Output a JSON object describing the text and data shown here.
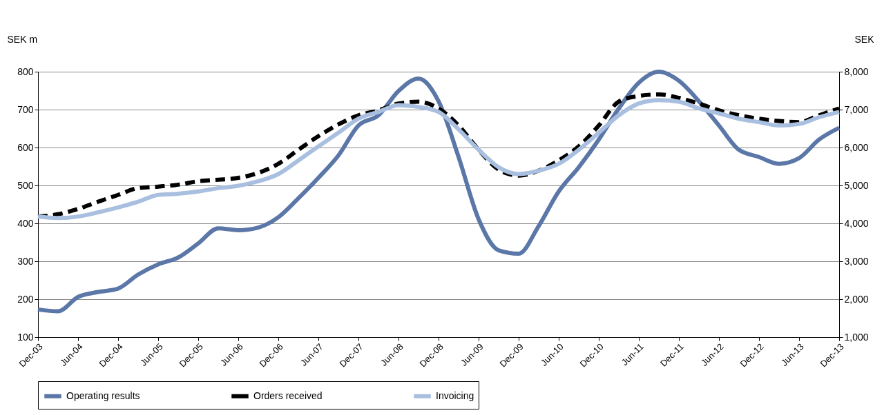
{
  "chart_data": {
    "type": "line",
    "ylabel": "SEK m",
    "y2label": "SEK",
    "categories": [
      "Dec-03",
      null,
      "Jun-04",
      null,
      "Dec-04",
      null,
      "Jun-05",
      null,
      "Dec-05",
      null,
      "Jun-06",
      null,
      "Dec-06",
      null,
      "Jun-07",
      null,
      "Dec-07",
      null,
      "Jun-08",
      null,
      "Dec-08",
      null,
      "Jun-09",
      null,
      "Dec-09",
      null,
      "Jun-10",
      null,
      "Dec-10",
      null,
      "Jun-11",
      null,
      "Dec-11",
      null,
      "Jun-12",
      null,
      "Dec-12",
      null,
      "Jun-13",
      null,
      "Dec-13"
    ],
    "ylim": [
      100,
      800
    ],
    "yticks": [
      100,
      200,
      300,
      400,
      500,
      600,
      700,
      800
    ],
    "y2lim": [
      1000,
      8000
    ],
    "y2ticks": [
      {
        "value": 1000,
        "label": "1,000"
      },
      {
        "value": 2000,
        "label": "2,000"
      },
      {
        "value": 3000,
        "label": "3,000"
      },
      {
        "value": 4000,
        "label": "4,000"
      },
      {
        "value": 5000,
        "label": "5,000"
      },
      {
        "value": 6000,
        "label": "6,000"
      },
      {
        "value": 7000,
        "label": "7,000"
      },
      {
        "value": 8000,
        "label": "8,000"
      }
    ],
    "grid": "y",
    "legend": "bottom",
    "series": [
      {
        "name": "Operating results",
        "color": "#5b77a8",
        "line_style": "solid",
        "values": [
          173,
          168,
          206,
          219,
          228,
          265,
          292,
          310,
          347,
          387,
          382,
          389,
          416,
          466,
          520,
          579,
          658,
          685,
          749,
          782,
          722,
          575,
          411,
          329,
          320,
          393,
          484,
          548,
          621,
          703,
          771,
          800,
          776,
          722,
          658,
          594,
          575,
          557,
          572,
          621,
          652
        ]
      },
      {
        "name": "Orders received",
        "color": "#000000",
        "line_style": "dashed",
        "axis": "y2",
        "values": [
          4180,
          4240,
          4380,
          4570,
          4750,
          4930,
          4970,
          5020,
          5110,
          5150,
          5200,
          5330,
          5570,
          5940,
          6300,
          6610,
          6850,
          6980,
          7160,
          7210,
          7030,
          6580,
          5940,
          5420,
          5260,
          5390,
          5660,
          6030,
          6580,
          7210,
          7360,
          7400,
          7310,
          7160,
          6980,
          6850,
          6760,
          6700,
          6670,
          6850,
          7030
        ]
      },
      {
        "name": "Invoicing",
        "color": "#a9bfe0",
        "line_style": "solid",
        "axis": "y2",
        "values": [
          4180,
          4140,
          4180,
          4290,
          4420,
          4570,
          4750,
          4780,
          4840,
          4930,
          4990,
          5110,
          5300,
          5660,
          6030,
          6390,
          6760,
          6940,
          7120,
          7070,
          6940,
          6480,
          5940,
          5480,
          5300,
          5390,
          5570,
          5940,
          6390,
          6850,
          7160,
          7250,
          7210,
          7030,
          6900,
          6760,
          6670,
          6580,
          6620,
          6800,
          6940
        ]
      }
    ]
  }
}
